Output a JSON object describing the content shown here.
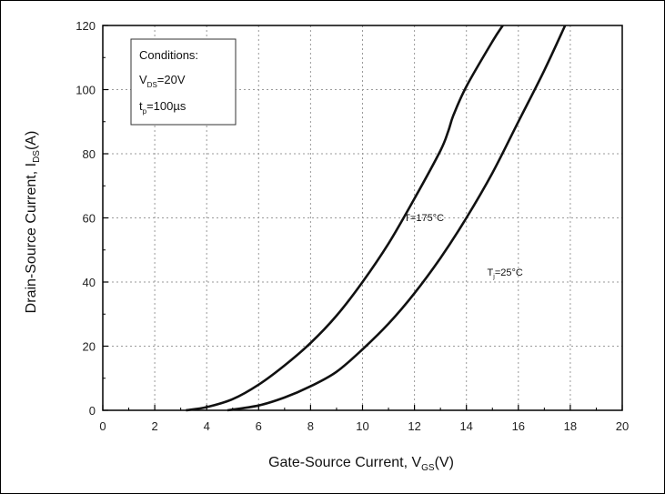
{
  "chart_data": {
    "type": "line",
    "xlabel": {
      "main": "Gate-Source Current, V",
      "sub": "GS",
      "unit": "(V)"
    },
    "ylabel": {
      "main": "Drain-Source Current, I",
      "sub": "DS",
      "unit": "(A)"
    },
    "xlim": [
      0,
      20
    ],
    "ylim": [
      0,
      120
    ],
    "xticks": [
      0,
      2,
      4,
      6,
      8,
      10,
      12,
      14,
      16,
      18,
      20
    ],
    "yticks": [
      0,
      20,
      40,
      60,
      80,
      100,
      120
    ],
    "grid": true,
    "conditions": {
      "title": "Conditions:",
      "line1": {
        "main": "V",
        "sub": "DS",
        "rest": "=20V"
      },
      "line2": {
        "main": "t",
        "sub": "p",
        "rest": "=100µs"
      }
    },
    "series": [
      {
        "name": "T = 175°C",
        "label": {
          "main": "T",
          "rest": "=175°C",
          "at": [
            11.6,
            59
          ]
        },
        "x": [
          3.2,
          4,
          5,
          6,
          7,
          8,
          9,
          10,
          11,
          12,
          13,
          13.3,
          13.5,
          14,
          15,
          15.4
        ],
        "y": [
          0,
          1,
          3.5,
          8,
          14,
          21,
          29.5,
          40,
          52,
          66,
          81,
          87,
          92,
          101,
          115,
          120
        ]
      },
      {
        "name": "Tj = 25°C",
        "label": {
          "main": "T",
          "sub": "j",
          "rest": "=25°C",
          "at": [
            14.8,
            42
          ]
        },
        "x": [
          4.8,
          6,
          7,
          8,
          9,
          10,
          11,
          12,
          13,
          14,
          15,
          16,
          17,
          17.8
        ],
        "y": [
          0,
          1.5,
          4,
          7.5,
          12,
          19,
          27,
          36.5,
          47.5,
          60,
          74,
          90,
          106,
          120
        ]
      }
    ]
  }
}
